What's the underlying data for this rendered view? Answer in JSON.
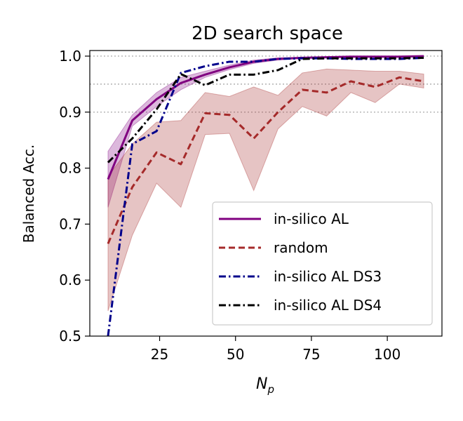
{
  "chart_data": {
    "type": "line",
    "title": "2D search space",
    "xlabel_base": "N",
    "xlabel_sub": "p",
    "ylabel": "Balanced Acc.",
    "xlim": [
      2,
      118
    ],
    "ylim": [
      0.5,
      1.01
    ],
    "xticks": [
      25,
      50,
      75,
      100
    ],
    "xtick_labels": [
      "25",
      "50",
      "75",
      "100"
    ],
    "yticks": [
      0.5,
      0.6,
      0.7,
      0.8,
      0.9,
      1.0
    ],
    "ytick_labels": [
      "0.5",
      "0.6",
      "0.7",
      "0.8",
      "0.9",
      "1.0"
    ],
    "reference_lines": [
      0.9,
      0.95,
      1.0
    ],
    "legend_position": "lower right",
    "series": [
      {
        "name": "in-silico AL",
        "color": "#800080",
        "dash": "solid",
        "x": [
          8,
          16,
          24,
          32,
          40,
          48,
          56,
          64,
          72,
          80,
          88,
          96,
          104,
          112
        ],
        "y": [
          0.78,
          0.885,
          0.923,
          0.952,
          0.967,
          0.98,
          0.99,
          0.995,
          0.997,
          0.998,
          0.999,
          0.999,
          0.999,
          1.0
        ],
        "lower": [
          0.73,
          0.875,
          0.91,
          0.94,
          0.962,
          0.976,
          0.987,
          0.993,
          0.996,
          0.997,
          0.998,
          0.998,
          0.998,
          0.999
        ],
        "upper": [
          0.83,
          0.895,
          0.935,
          0.962,
          0.973,
          0.984,
          0.993,
          0.997,
          0.998,
          0.999,
          1.0,
          1.0,
          1.0,
          1.0
        ]
      },
      {
        "name": "random",
        "color": "#a52a2a",
        "dash": "dashed",
        "x": [
          8,
          16,
          24,
          32,
          40,
          48,
          56,
          64,
          72,
          80,
          88,
          96,
          104,
          112
        ],
        "y": [
          0.665,
          0.766,
          0.828,
          0.807,
          0.898,
          0.895,
          0.853,
          0.9,
          0.94,
          0.935,
          0.955,
          0.945,
          0.962,
          0.955
        ],
        "lower": [
          0.545,
          0.68,
          0.773,
          0.73,
          0.86,
          0.862,
          0.76,
          0.87,
          0.91,
          0.893,
          0.935,
          0.917,
          0.95,
          0.943
        ],
        "upper": [
          0.785,
          0.843,
          0.882,
          0.885,
          0.935,
          0.928,
          0.945,
          0.93,
          0.97,
          0.977,
          0.975,
          0.973,
          0.973,
          0.968
        ]
      },
      {
        "name": "in-silico AL DS3",
        "color": "#00008b",
        "dash": "dashdot",
        "x": [
          8,
          16,
          24,
          32,
          40,
          48,
          56,
          64,
          72,
          80,
          88,
          96,
          104,
          112
        ],
        "y": [
          0.5,
          0.843,
          0.866,
          0.97,
          0.982,
          0.99,
          0.99,
          0.995,
          0.996,
          0.996,
          0.995,
          0.995,
          0.995,
          0.997
        ]
      },
      {
        "name": "in-silico AL DS4",
        "color": "#000000",
        "dash": "dashdot",
        "x": [
          8,
          16,
          24,
          32,
          40,
          48,
          56,
          64,
          72,
          80,
          88,
          96,
          104,
          112
        ],
        "y": [
          0.81,
          0.853,
          0.905,
          0.968,
          0.948,
          0.967,
          0.967,
          0.975,
          0.995,
          0.996,
          0.996,
          0.996,
          0.996,
          0.997
        ]
      }
    ]
  }
}
